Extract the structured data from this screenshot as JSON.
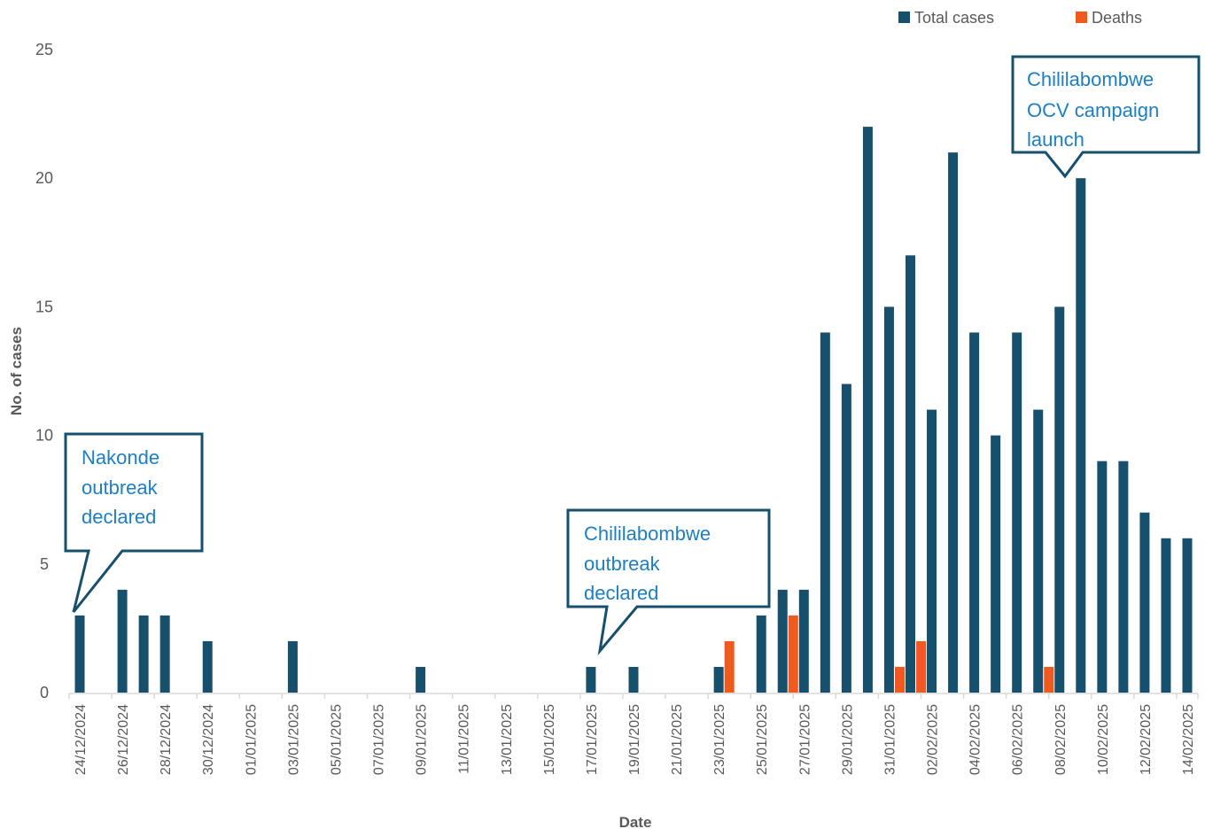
{
  "chart_data": {
    "type": "bar",
    "xlabel": "Date",
    "ylabel": "No. of cases",
    "ylim": [
      0,
      25
    ],
    "yticks": [
      0,
      5,
      10,
      15,
      20,
      25
    ],
    "grid": false,
    "legend_position": "top-right",
    "categories": [
      "24/12/2024",
      "25/12/2024",
      "26/12/2024",
      "27/12/2024",
      "28/12/2024",
      "29/12/2024",
      "30/12/2024",
      "31/12/2024",
      "01/01/2025",
      "02/01/2025",
      "03/01/2025",
      "04/01/2025",
      "05/01/2025",
      "06/01/2025",
      "07/01/2025",
      "08/01/2025",
      "09/01/2025",
      "10/01/2025",
      "11/01/2025",
      "12/01/2025",
      "13/01/2025",
      "14/01/2025",
      "15/01/2025",
      "16/01/2025",
      "17/01/2025",
      "18/01/2025",
      "19/01/2025",
      "20/01/2025",
      "21/01/2025",
      "22/01/2025",
      "23/01/2025",
      "24/01/2025",
      "25/01/2025",
      "26/01/2025",
      "27/01/2025",
      "28/01/2025",
      "29/01/2025",
      "30/01/2025",
      "31/01/2025",
      "01/02/2025",
      "02/02/2025",
      "03/02/2025",
      "04/02/2025",
      "05/02/2025",
      "06/02/2025",
      "07/02/2025",
      "08/02/2025",
      "09/02/2025",
      "10/02/2025",
      "11/02/2025",
      "12/02/2025",
      "13/02/2025",
      "14/02/2025"
    ],
    "series": [
      {
        "name": "Total cases",
        "color": "#17506d",
        "values": [
          3,
          0,
          4,
          3,
          3,
          0,
          2,
          0,
          0,
          0,
          2,
          0,
          0,
          0,
          0,
          0,
          1,
          0,
          0,
          0,
          0,
          0,
          0,
          0,
          1,
          0,
          1,
          0,
          0,
          0,
          1,
          0,
          3,
          4,
          4,
          14,
          12,
          22,
          15,
          17,
          11,
          21,
          14,
          10,
          14,
          11,
          15,
          20,
          9,
          9,
          7,
          6,
          6
        ]
      },
      {
        "name": "Deaths",
        "color": "#f05a1e",
        "values": [
          0,
          0,
          0,
          0,
          0,
          0,
          0,
          0,
          0,
          0,
          0,
          0,
          0,
          0,
          0,
          0,
          0,
          0,
          0,
          0,
          0,
          0,
          0,
          0,
          0,
          0,
          0,
          0,
          0,
          0,
          0,
          2,
          0,
          0,
          3,
          0,
          0,
          0,
          0,
          1,
          2,
          0,
          0,
          0,
          0,
          0,
          1,
          0,
          0,
          0,
          0,
          0,
          0
        ]
      }
    ],
    "annotations": [
      {
        "lines": [
          "Nakonde",
          "outbreak",
          "declared"
        ],
        "target": "24/12/2024"
      },
      {
        "lines": [
          "Chililabombwe",
          "outbreak",
          "declared"
        ],
        "target": "17/01/2025"
      },
      {
        "lines": [
          "Chililabombwe",
          "OCV campaign",
          "launch"
        ],
        "target": "09/02/2025"
      }
    ]
  }
}
